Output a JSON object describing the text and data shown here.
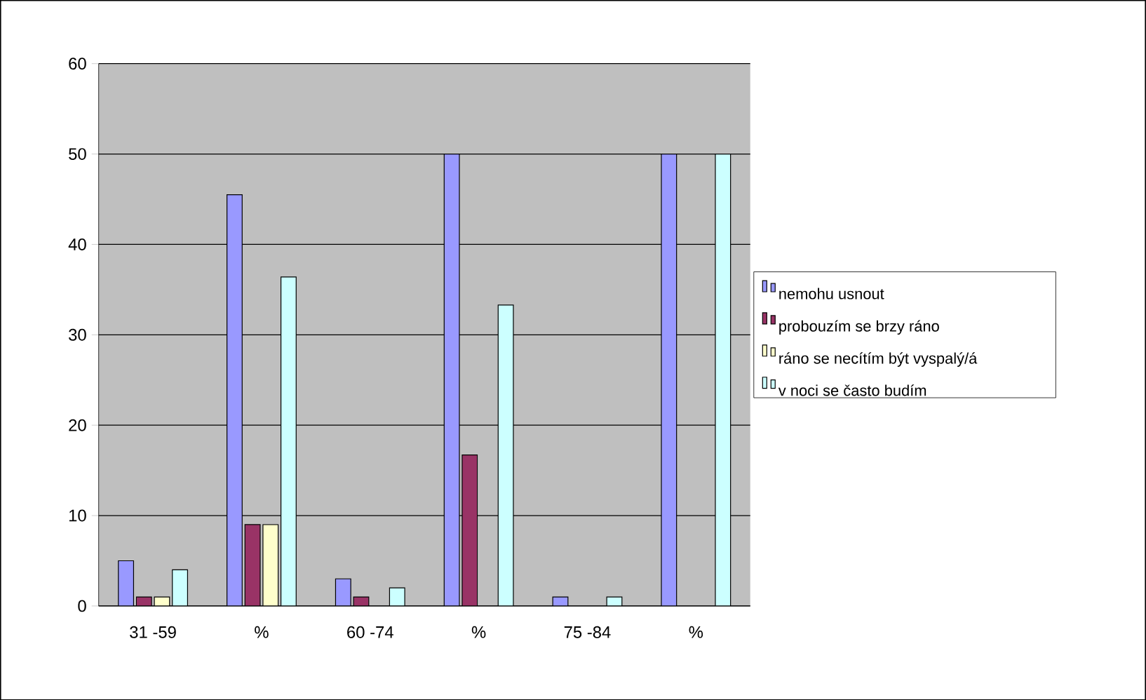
{
  "chart_data": {
    "type": "bar",
    "categories": [
      "31 -59",
      "%",
      "60 -74",
      "%",
      "75 -84",
      "%"
    ],
    "series": [
      {
        "name": "nemohu usnout",
        "color": "#9999ff",
        "values": [
          5,
          45.5,
          3,
          50,
          1,
          50
        ]
      },
      {
        "name": "probouzím se brzy ráno",
        "color": "#993366",
        "values": [
          1,
          9,
          1,
          16.7,
          null,
          null
        ]
      },
      {
        "name": "ráno se necítím být vyspalý/á",
        "color": "#ffffcc",
        "values": [
          1,
          9,
          null,
          null,
          null,
          null
        ]
      },
      {
        "name": "v noci se často budím",
        "color": "#ccffff",
        "values": [
          4,
          36.4,
          2,
          33.3,
          1,
          50
        ]
      }
    ],
    "ylim": [
      0,
      60
    ],
    "yticks": [
      0,
      10,
      20,
      30,
      40,
      50,
      60
    ],
    "grid": "y",
    "legend": "right"
  }
}
